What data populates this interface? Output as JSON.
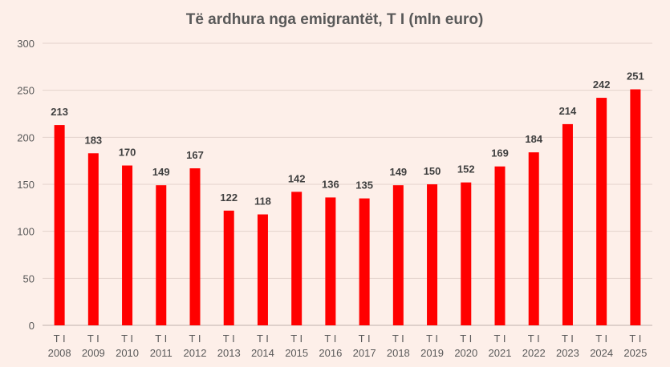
{
  "chart_data": {
    "type": "bar",
    "title": "Të ardhura nga emigrantët, T I (mln euro)",
    "xlabel": "",
    "ylabel": "",
    "categories": [
      [
        "T I",
        "2008"
      ],
      [
        "T I",
        "2009"
      ],
      [
        "T I",
        "2010"
      ],
      [
        "T I",
        "2011"
      ],
      [
        "T I",
        "2012"
      ],
      [
        "T I",
        "2013"
      ],
      [
        "T I",
        "2014"
      ],
      [
        "T I",
        "2015"
      ],
      [
        "T I",
        "2016"
      ],
      [
        "T I",
        "2017"
      ],
      [
        "T I",
        "2018"
      ],
      [
        "T I",
        "2019"
      ],
      [
        "T I",
        "2020"
      ],
      [
        "T I",
        "2021"
      ],
      [
        "T I",
        "2022"
      ],
      [
        "T I",
        "2023"
      ],
      [
        "T I",
        "2024"
      ],
      [
        "T I",
        "2025"
      ]
    ],
    "values": [
      213,
      183,
      170,
      149,
      167,
      122,
      118,
      142,
      136,
      135,
      149,
      150,
      152,
      169,
      184,
      214,
      242,
      251
    ],
    "ylim": [
      0,
      300
    ],
    "yticks": [
      0,
      50,
      100,
      150,
      200,
      250,
      300
    ],
    "grid": true,
    "legend": "none",
    "colors": {
      "bar": "#ff0000",
      "background": "#fdefe9"
    }
  }
}
